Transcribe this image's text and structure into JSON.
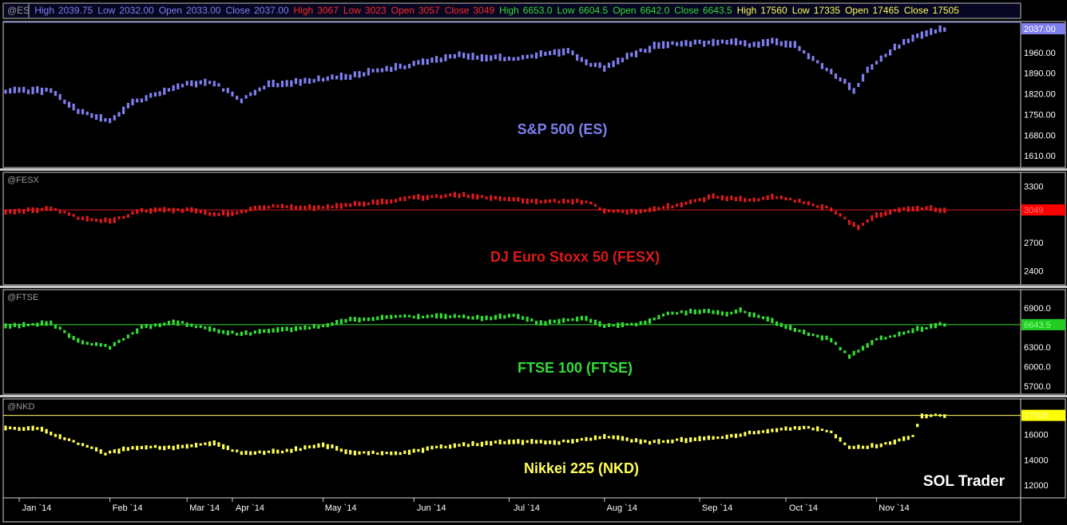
{
  "header": {
    "symbol": "@ES",
    "groups": [
      {
        "color": "#8080f0",
        "items": [
          [
            "High",
            "2039.75"
          ],
          [
            "Low",
            "2032.00"
          ],
          [
            "Open",
            "2033.00"
          ],
          [
            "Close",
            "2037.00"
          ]
        ]
      },
      {
        "color": "#ff2a2a",
        "items": [
          [
            "High",
            "3067"
          ],
          [
            "Low",
            "3023"
          ],
          [
            "Open",
            "3057"
          ],
          [
            "Close",
            "3049"
          ]
        ]
      },
      {
        "color": "#33dd33",
        "items": [
          [
            "High",
            "6653.0"
          ],
          [
            "Low",
            "6604.5"
          ],
          [
            "Open",
            "6642.0"
          ],
          [
            "Close",
            "6643.5"
          ]
        ]
      },
      {
        "color": "#ffff55",
        "items": [
          [
            "High",
            "17560"
          ],
          [
            "Low",
            "17335"
          ],
          [
            "Open",
            "17465"
          ],
          [
            "Close",
            "17505"
          ]
        ]
      }
    ]
  },
  "x_axis": {
    "labels": [
      "Jan `14",
      "Feb `14",
      "Mar `14",
      "Apr `14",
      "May `14",
      "Jun `14",
      "Jul `14",
      "Aug `14",
      "Sep `14",
      "Oct `14",
      "Nov `14"
    ],
    "positions": [
      3,
      23,
      40,
      50,
      70,
      90,
      111,
      132,
      153,
      172,
      192
    ]
  },
  "watermark": "SOL Trader",
  "chart_data": [
    {
      "type": "bar",
      "symbol_label": "@ES",
      "title": "S&P 500 (ES)",
      "color": "#7f7fef",
      "ylim": [
        1570,
        2065
      ],
      "y_ticks": [
        "1960.00",
        "1890.00",
        "1820.00",
        "1750.00",
        "1680.00",
        "1610.00"
      ],
      "y_tick_values": [
        1960,
        1890,
        1820,
        1750,
        1680,
        1610
      ],
      "last_value": "2037.00",
      "last_num": 2037,
      "tag_fill": "#7f7fef",
      "tag_text": "#ffffff",
      "last_line": false,
      "keypoints": [
        [
          0,
          1830
        ],
        [
          10,
          1830
        ],
        [
          16,
          1760
        ],
        [
          23,
          1730
        ],
        [
          28,
          1790
        ],
        [
          40,
          1855
        ],
        [
          46,
          1855
        ],
        [
          52,
          1800
        ],
        [
          58,
          1850
        ],
        [
          70,
          1870
        ],
        [
          76,
          1880
        ],
        [
          90,
          1920
        ],
        [
          100,
          1950
        ],
        [
          112,
          1940
        ],
        [
          124,
          1965
        ],
        [
          128,
          1925
        ],
        [
          132,
          1910
        ],
        [
          140,
          1965
        ],
        [
          145,
          1990
        ],
        [
          160,
          1995
        ],
        [
          165,
          1985
        ],
        [
          169,
          2000
        ],
        [
          174,
          1985
        ],
        [
          178,
          1940
        ],
        [
          185,
          1860
        ],
        [
          187,
          1830
        ],
        [
          190,
          1900
        ],
        [
          196,
          1975
        ],
        [
          200,
          2010
        ],
        [
          206,
          2037
        ]
      ]
    },
    {
      "type": "bar",
      "symbol_label": "@FESX",
      "title": "DJ Euro Stoxx 50 (FESX)",
      "color": "#dd1a1a",
      "ylim": [
        2250,
        3450
      ],
      "y_ticks": [
        "3300",
        "2700",
        "2400"
      ],
      "y_tick_values": [
        3300,
        2700,
        2400
      ],
      "last_value": "3049",
      "last_num": 3049,
      "tag_fill": "#ff0000",
      "tag_text": "#ff7777",
      "last_line": true,
      "keypoints": [
        [
          0,
          3030
        ],
        [
          10,
          3060
        ],
        [
          16,
          2970
        ],
        [
          23,
          2930
        ],
        [
          30,
          3040
        ],
        [
          40,
          3050
        ],
        [
          46,
          3000
        ],
        [
          52,
          3030
        ],
        [
          58,
          3090
        ],
        [
          64,
          3070
        ],
        [
          70,
          3080
        ],
        [
          80,
          3120
        ],
        [
          90,
          3180
        ],
        [
          100,
          3210
        ],
        [
          112,
          3160
        ],
        [
          120,
          3140
        ],
        [
          128,
          3140
        ],
        [
          132,
          3040
        ],
        [
          138,
          3030
        ],
        [
          148,
          3100
        ],
        [
          156,
          3190
        ],
        [
          165,
          3150
        ],
        [
          169,
          3190
        ],
        [
          176,
          3130
        ],
        [
          182,
          3060
        ],
        [
          188,
          2860
        ],
        [
          192,
          2990
        ],
        [
          196,
          3040
        ],
        [
          202,
          3070
        ],
        [
          206,
          3049
        ]
      ]
    },
    {
      "type": "bar",
      "symbol_label": "@FTSE",
      "title": "FTSE 100 (FTSE)",
      "color": "#33dd33",
      "ylim": [
        5580,
        7180
      ],
      "y_ticks": [
        "6900.0",
        "6300.0",
        "6000.0",
        "5700.0"
      ],
      "y_tick_values": [
        6900,
        6300,
        6000,
        5700
      ],
      "last_value": "6643.5",
      "last_num": 6643.5,
      "tag_fill": "#22cc22",
      "tag_text": "#88ff88",
      "last_line": true,
      "keypoints": [
        [
          0,
          6620
        ],
        [
          10,
          6670
        ],
        [
          16,
          6390
        ],
        [
          23,
          6300
        ],
        [
          30,
          6600
        ],
        [
          38,
          6680
        ],
        [
          46,
          6560
        ],
        [
          52,
          6500
        ],
        [
          60,
          6560
        ],
        [
          70,
          6620
        ],
        [
          76,
          6720
        ],
        [
          86,
          6760
        ],
        [
          96,
          6780
        ],
        [
          106,
          6740
        ],
        [
          112,
          6790
        ],
        [
          118,
          6660
        ],
        [
          128,
          6740
        ],
        [
          132,
          6620
        ],
        [
          140,
          6660
        ],
        [
          146,
          6820
        ],
        [
          154,
          6850
        ],
        [
          160,
          6810
        ],
        [
          162,
          6860
        ],
        [
          170,
          6670
        ],
        [
          176,
          6520
        ],
        [
          182,
          6410
        ],
        [
          186,
          6160
        ],
        [
          192,
          6410
        ],
        [
          200,
          6560
        ],
        [
          206,
          6643
        ]
      ]
    },
    {
      "type": "bar",
      "symbol_label": "@NKD",
      "title": "Nikkei 225 (NKD)",
      "color": "#ffff55",
      "ylim": [
        11000,
        18800
      ],
      "y_ticks": [
        "16000",
        "14000",
        "12000"
      ],
      "y_tick_values": [
        16000,
        14000,
        12000
      ],
      "last_value": "17505",
      "last_num": 17505,
      "tag_fill": "#ffff00",
      "tag_text": "#ffffaa",
      "last_line": true,
      "keypoints": [
        [
          0,
          16500
        ],
        [
          8,
          16400
        ],
        [
          16,
          15300
        ],
        [
          22,
          14500
        ],
        [
          28,
          15000
        ],
        [
          40,
          15000
        ],
        [
          46,
          15300
        ],
        [
          52,
          14500
        ],
        [
          62,
          14700
        ],
        [
          70,
          15200
        ],
        [
          76,
          14600
        ],
        [
          86,
          14500
        ],
        [
          98,
          15100
        ],
        [
          110,
          15400
        ],
        [
          122,
          15400
        ],
        [
          132,
          15800
        ],
        [
          142,
          15400
        ],
        [
          156,
          15700
        ],
        [
          166,
          16200
        ],
        [
          176,
          16600
        ],
        [
          182,
          16200
        ],
        [
          186,
          15000
        ],
        [
          190,
          15000
        ],
        [
          196,
          15400
        ],
        [
          200,
          15900
        ],
        [
          202,
          17400
        ],
        [
          206,
          17505
        ]
      ]
    }
  ]
}
